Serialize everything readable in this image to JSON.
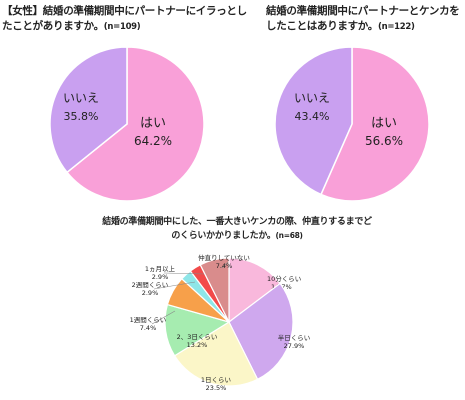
{
  "chart_data": [
    {
      "type": "pie",
      "title": "【女性】結婚の準備期間中にパートナーにイラっとしたことがありますか。",
      "n_label": "(n=109)",
      "slices": [
        {
          "label": "はい",
          "value": 64.2,
          "value_text": "64.2%",
          "color": "#f9a0d8"
        },
        {
          "label": "いいえ",
          "value": 35.8,
          "value_text": "35.8%",
          "color": "#c9a0f0"
        }
      ]
    },
    {
      "type": "pie",
      "title": "結婚の準備期間中にパートナーとケンカをしたことはありますか。",
      "n_label": "(n=122)",
      "slices": [
        {
          "label": "はい",
          "value": 56.6,
          "value_text": "56.6%",
          "color": "#f9a0d8"
        },
        {
          "label": "いいえ",
          "value": 43.4,
          "value_text": "43.4%",
          "color": "#c9a0f0"
        }
      ]
    },
    {
      "type": "pie",
      "title": "結婚の準備期間中にした、一番大きいケンカの際、仲直りするまでどのくらいかかりましたか。",
      "n_label": "(n=68)",
      "slices": [
        {
          "label": "10分くらい",
          "value": 14.7,
          "value_text": "14.7%",
          "color": "#f9b8dc"
        },
        {
          "label": "半日くらい",
          "value": 27.9,
          "value_text": "27.9%",
          "color": "#cfa8ee"
        },
        {
          "label": "1日くらい",
          "value": 23.5,
          "value_text": "23.5%",
          "color": "#fbf6c8"
        },
        {
          "label": "2、3日くらい",
          "value": 13.2,
          "value_text": "13.2%",
          "color": "#a6ecb0"
        },
        {
          "label": "1週間くらい",
          "value": 7.4,
          "value_text": "7.4%",
          "color": "#f7a04a"
        },
        {
          "label": "2週間くらい",
          "value": 2.9,
          "value_text": "2.9%",
          "color": "#8ee6e8"
        },
        {
          "label": "1ヵ月以上",
          "value": 2.9,
          "value_text": "2.9%",
          "color": "#f24a4a"
        },
        {
          "label": "仲直りしていない",
          "value": 7.4,
          "value_text": "7.4%",
          "color": "#d98c8c"
        }
      ]
    }
  ]
}
